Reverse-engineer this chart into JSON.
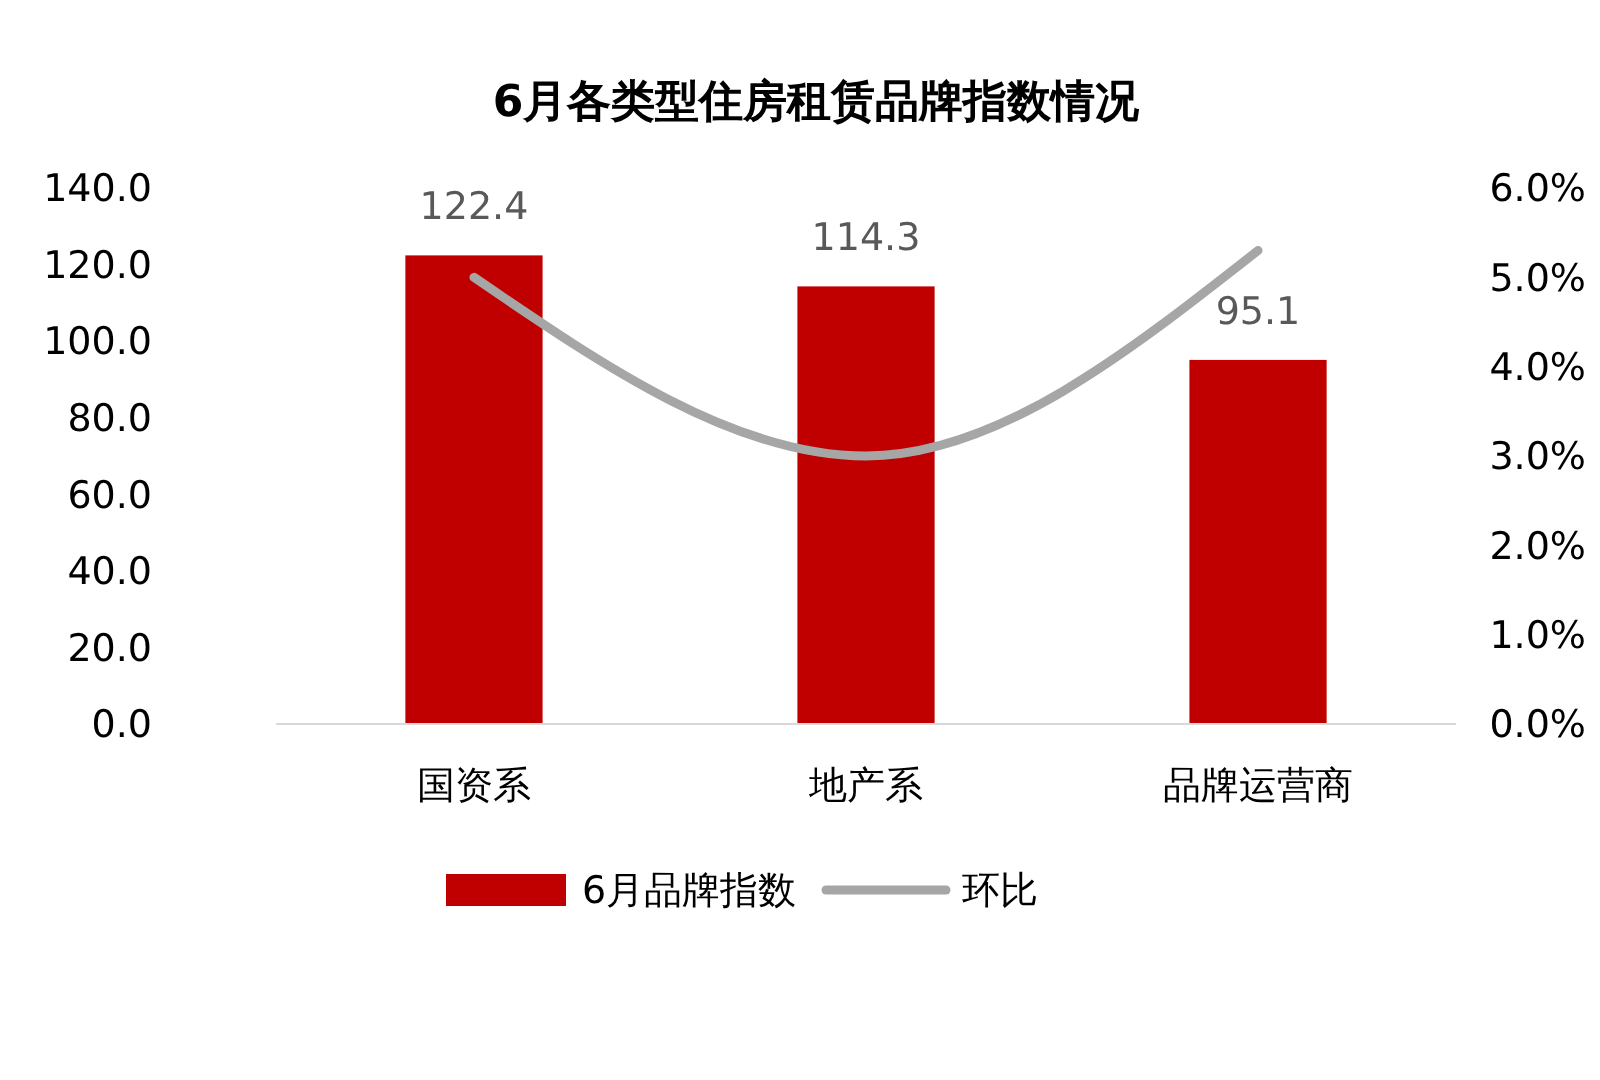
{
  "chart_data": {
    "type": "bar",
    "title": "6月各类型住房租赁品牌指数情况",
    "categories": [
      "国资系",
      "地产系",
      "品牌运营商"
    ],
    "series": [
      {
        "name": "6月品牌指数",
        "color": "#c00000",
        "values": [
          122.4,
          114.3,
          95.1
        ],
        "value_labels": [
          "122.4",
          "114.3",
          "95.1"
        ]
      },
      {
        "name": "环比",
        "type": "line",
        "axis": "y2",
        "color": "#a6a6a6",
        "values": [
          5.0,
          3.0,
          5.3
        ]
      }
    ],
    "ylim": [
      0,
      140
    ],
    "yticks": [
      {
        "value": 0,
        "label": "0.0"
      },
      {
        "value": 20,
        "label": "20.0"
      },
      {
        "value": 40,
        "label": "40.0"
      },
      {
        "value": 60,
        "label": "60.0"
      },
      {
        "value": 80,
        "label": "80.0"
      },
      {
        "value": 100,
        "label": "100.0"
      },
      {
        "value": 120,
        "label": "120.0"
      },
      {
        "value": 140,
        "label": "140.0"
      }
    ],
    "y2lim": [
      0,
      6
    ],
    "y2ticks": [
      {
        "value": 0,
        "label": "0.0%"
      },
      {
        "value": 1,
        "label": "1.0%"
      },
      {
        "value": 2,
        "label": "2.0%"
      },
      {
        "value": 3,
        "label": "3.0%"
      },
      {
        "value": 4,
        "label": "4.0%"
      },
      {
        "value": 5,
        "label": "5.0%"
      },
      {
        "value": 6,
        "label": "6.0%"
      }
    ],
    "legend": "bottom",
    "grid": false,
    "marker": "none",
    "line_style": "solid"
  }
}
